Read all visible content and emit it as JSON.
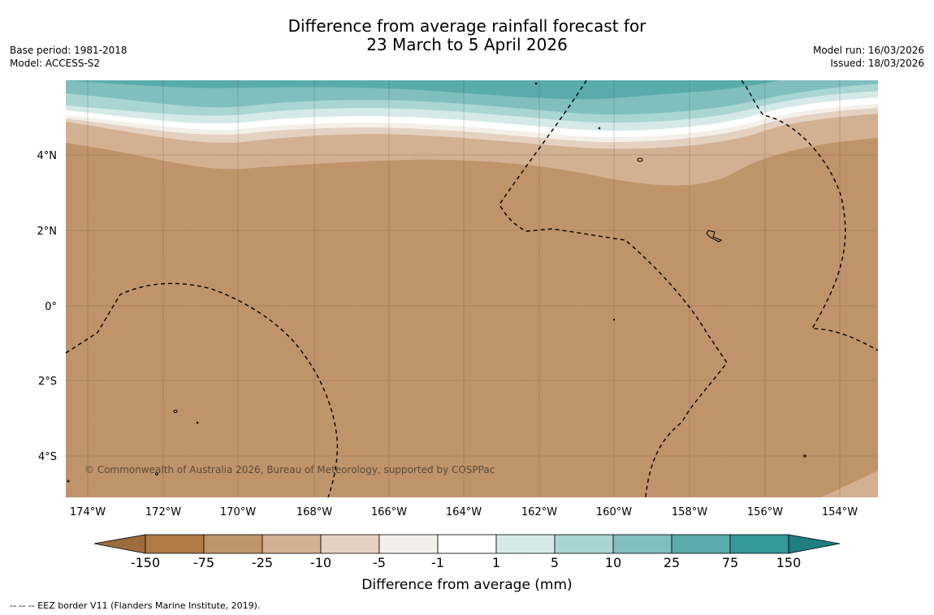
{
  "title": {
    "line1": "Difference from average rainfall forecast for",
    "line2": "23 March to 5 April 2026"
  },
  "meta_left": {
    "base_period": "Base period: 1981-2018",
    "model": "Model: ACCESS-S2"
  },
  "meta_right": {
    "model_run": "Model run: 16/03/2026",
    "issued": "Issued: 18/03/2026"
  },
  "map": {
    "lat_labels": [
      "4°N",
      "2°N",
      "0°",
      "2°S",
      "4°S"
    ],
    "lon_labels": [
      "174°W",
      "172°W",
      "170°W",
      "168°W",
      "166°W",
      "164°W",
      "162°W",
      "160°W",
      "158°W",
      "156°W",
      "154°W"
    ],
    "copyright": "© Commonwealth of Australia 2026, Bureau of Meteorology, supported by COSPPac"
  },
  "colorbar": {
    "title": "Difference from average (mm)",
    "tick_labels": [
      "-150",
      "-75",
      "-25",
      "-10",
      "-5",
      "-1",
      "1",
      "5",
      "10",
      "25",
      "75",
      "150"
    ],
    "colors": [
      "#9e6b3c",
      "#b07a45",
      "#c0946b",
      "#d3b092",
      "#e4d1c1",
      "#f3efe9",
      "#ffffff",
      "#d5e9e8",
      "#a9d5d3",
      "#80bfbd",
      "#5aabab",
      "#33999b",
      "#1f7e80"
    ]
  },
  "footnote": "--  --  -- EEZ border V11 (Flanders Marine Institute, 2019)."
}
